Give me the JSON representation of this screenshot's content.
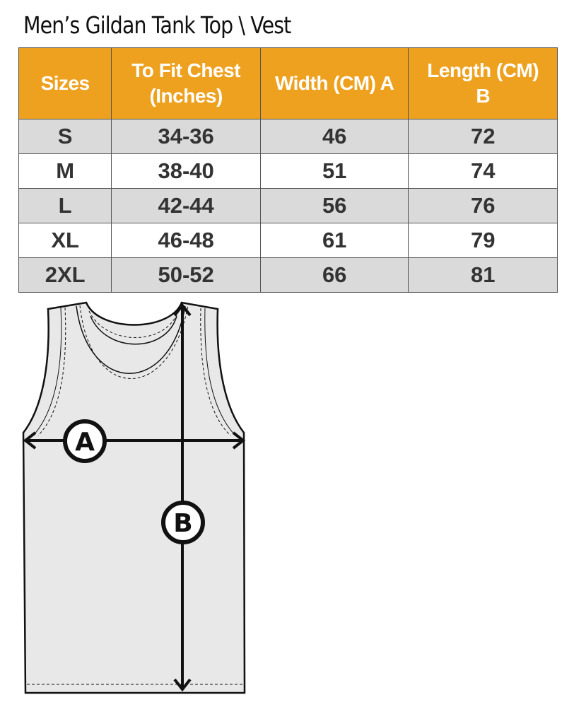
{
  "title": "Men’s Gildan Tank Top \\ Vest",
  "table": {
    "headers": [
      "Sizes",
      "To Fit Chest (Inches)",
      "Width (CM) A",
      "Length  (CM) B"
    ],
    "rows": [
      [
        "S",
        "34-36",
        "46",
        "72"
      ],
      [
        "M",
        "38-40",
        "51",
        "74"
      ],
      [
        "L",
        "42-44",
        "56",
        "76"
      ],
      [
        "XL",
        "46-48",
        "61",
        "79"
      ],
      [
        "2XL",
        "50-52",
        "66",
        "81"
      ]
    ]
  },
  "diagram": {
    "label_a": "A",
    "label_b": "B"
  },
  "colors": {
    "header": "#eea11e",
    "row_alt": "#dadada"
  }
}
